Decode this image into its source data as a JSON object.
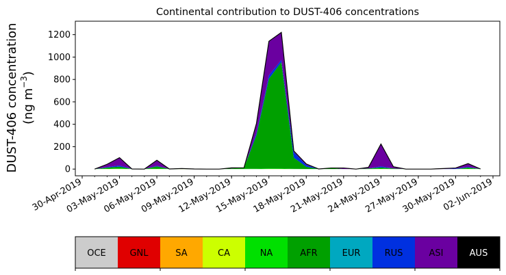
{
  "chart_data": {
    "type": "area",
    "stacked": true,
    "title": "Continental contribution to DUST-406 concentrations",
    "ylabel_line1": "DUST-406 concentration",
    "ylabel_line2_prefix": "(ng m",
    "ylabel_line2_exp": "−3",
    "ylabel_line2_suffix": ")",
    "xlabel": "",
    "ylim": [
      -60,
      1320
    ],
    "xlim": [
      "2019-04-30",
      "2019-06-02"
    ],
    "yticks": [
      0,
      200,
      400,
      600,
      800,
      1000,
      1200
    ],
    "xtick_labels": [
      "30-Apr-2019",
      "03-May-2019",
      "06-May-2019",
      "09-May-2019",
      "12-May-2019",
      "15-May-2019",
      "18-May-2019",
      "21-May-2019",
      "24-May-2019",
      "27-May-2019",
      "30-May-2019",
      "02-Jun-2019"
    ],
    "xtick_dates": [
      "2019-04-30",
      "2019-05-03",
      "2019-05-06",
      "2019-05-09",
      "2019-05-12",
      "2019-05-15",
      "2019-05-18",
      "2019-05-21",
      "2019-05-24",
      "2019-05-27",
      "2019-05-30",
      "2019-06-02"
    ],
    "x": [
      "2019-05-01",
      "2019-05-02",
      "2019-05-03",
      "2019-05-04",
      "2019-05-05",
      "2019-05-06",
      "2019-05-07",
      "2019-05-08",
      "2019-05-09",
      "2019-05-10",
      "2019-05-11",
      "2019-05-12",
      "2019-05-13",
      "2019-05-14",
      "2019-05-15",
      "2019-05-16",
      "2019-05-17",
      "2019-05-18",
      "2019-05-19",
      "2019-05-20",
      "2019-05-21",
      "2019-05-22",
      "2019-05-23",
      "2019-05-24",
      "2019-05-25",
      "2019-05-26",
      "2019-05-27",
      "2019-05-28",
      "2019-05-29",
      "2019-05-30",
      "2019-05-31",
      "2019-06-01"
    ],
    "grid": false,
    "legend_placement": "bottom",
    "series": [
      {
        "name": "OCE",
        "color": "#cccccc",
        "values": [
          0,
          0,
          0,
          0,
          0,
          0,
          0,
          0,
          0,
          0,
          0,
          0,
          0,
          0,
          0,
          0,
          0,
          0,
          0,
          0,
          0,
          0,
          0,
          0,
          0,
          0,
          0,
          0,
          0,
          0,
          0,
          0
        ]
      },
      {
        "name": "GNL",
        "color": "#e00000",
        "values": [
          0,
          0,
          0,
          0,
          0,
          0,
          0,
          0,
          0,
          0,
          0,
          0,
          0,
          0,
          0,
          0,
          0,
          0,
          0,
          0,
          0,
          0,
          0,
          0,
          0,
          0,
          0,
          0,
          0,
          0,
          0,
          0
        ]
      },
      {
        "name": "SA",
        "color": "#ffa800",
        "values": [
          0,
          0,
          0,
          0,
          0,
          0,
          0,
          0,
          0,
          0,
          0,
          0,
          0,
          0,
          0,
          0,
          0,
          0,
          0,
          0,
          0,
          0,
          0,
          0,
          0,
          0,
          0,
          0,
          0,
          0,
          0,
          0
        ]
      },
      {
        "name": "CA",
        "color": "#ccff00",
        "values": [
          0,
          1,
          2,
          0,
          0,
          1,
          0,
          1,
          0,
          0,
          0,
          0,
          0,
          0,
          1,
          1,
          0,
          0,
          0,
          0,
          0,
          0,
          0,
          1,
          0,
          0,
          0,
          0,
          0,
          0,
          1,
          0
        ]
      },
      {
        "name": "NA",
        "color": "#00e000",
        "values": [
          0,
          2,
          5,
          1,
          0,
          3,
          1,
          2,
          1,
          0,
          0,
          1,
          2,
          3,
          5,
          4,
          2,
          1,
          1,
          0,
          0,
          0,
          1,
          3,
          1,
          0,
          0,
          0,
          0,
          0,
          3,
          1
        ]
      },
      {
        "name": "AFR",
        "color": "#00a000",
        "values": [
          0,
          10,
          15,
          0,
          0,
          20,
          0,
          2,
          0,
          0,
          0,
          5,
          10,
          300,
          800,
          950,
          100,
          20,
          0,
          10,
          0,
          0,
          5,
          10,
          5,
          0,
          0,
          0,
          0,
          0,
          10,
          0
        ]
      },
      {
        "name": "EUR",
        "color": "#00a8c0",
        "values": [
          0,
          0,
          0,
          0,
          0,
          0,
          0,
          0,
          0,
          0,
          0,
          0,
          0,
          0,
          0,
          0,
          0,
          0,
          0,
          0,
          0,
          0,
          0,
          0,
          0,
          0,
          0,
          0,
          0,
          0,
          0,
          0
        ]
      },
      {
        "name": "RUS",
        "color": "#0030e0",
        "values": [
          0,
          5,
          10,
          0,
          0,
          5,
          0,
          0,
          0,
          0,
          0,
          0,
          0,
          20,
          30,
          20,
          50,
          15,
          0,
          0,
          0,
          0,
          0,
          10,
          0,
          0,
          0,
          0,
          0,
          5,
          5,
          0
        ]
      },
      {
        "name": "ASI",
        "color": "#6a00a0",
        "values": [
          0,
          25,
          70,
          0,
          0,
          50,
          0,
          0,
          0,
          0,
          0,
          5,
          0,
          85,
          305,
          245,
          10,
          10,
          0,
          0,
          10,
          0,
          10,
          200,
          15,
          0,
          0,
          0,
          5,
          5,
          30,
          0
        ]
      },
      {
        "name": "AUS",
        "color": "#000000",
        "values": [
          0,
          0,
          0,
          0,
          0,
          0,
          0,
          0,
          0,
          0,
          0,
          0,
          0,
          0,
          0,
          0,
          0,
          0,
          0,
          0,
          0,
          0,
          0,
          0,
          0,
          0,
          0,
          0,
          0,
          0,
          0,
          0
        ]
      }
    ],
    "legend_text_colors": {
      "AUS": "#ffffff"
    }
  }
}
